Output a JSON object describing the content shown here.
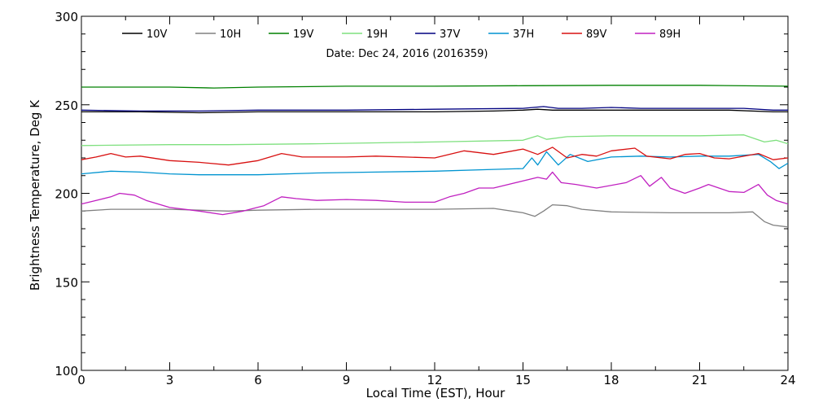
{
  "chart_data": {
    "type": "line",
    "title": "Date: Dec 24, 2016 (2016359)",
    "xlabel": "Local Time (EST), Hour",
    "ylabel": "Brightness Temperature, Deg K",
    "xlim": [
      0,
      24
    ],
    "ylim": [
      100,
      300
    ],
    "xticks": [
      0,
      3,
      6,
      9,
      12,
      15,
      18,
      21,
      24
    ],
    "yticks": [
      100,
      150,
      200,
      250,
      300
    ],
    "grid": false,
    "legend_placement": "top",
    "series": [
      {
        "name": "10V",
        "color": "#000000",
        "x": [
          0,
          2,
          4,
          6,
          8,
          10,
          12,
          14,
          15,
          15.5,
          16,
          17,
          18,
          20,
          22,
          23.5,
          24
        ],
        "y": [
          246,
          246,
          245.5,
          246,
          246,
          246,
          246,
          246.5,
          247,
          247.5,
          247,
          247,
          247,
          247,
          247,
          246,
          246
        ]
      },
      {
        "name": "10H",
        "color": "#808080",
        "x": [
          0,
          1,
          2,
          3,
          4,
          5,
          6,
          8,
          10,
          12,
          14,
          15,
          15.4,
          15.7,
          16,
          16.5,
          17,
          18,
          20,
          22,
          22.8,
          23.2,
          23.5,
          24
        ],
        "y": [
          190,
          191,
          191,
          191,
          190.5,
          190,
          190.5,
          191,
          191,
          191,
          191.5,
          189,
          187,
          190,
          193.5,
          193,
          191,
          189.5,
          189,
          189,
          189.5,
          184,
          182,
          181
        ]
      },
      {
        "name": "19V",
        "color": "#008000",
        "x": [
          0,
          3,
          4.5,
          6,
          9,
          12,
          15,
          18,
          21,
          24
        ],
        "y": [
          260,
          260,
          259.5,
          260,
          260.5,
          260.5,
          260.8,
          261,
          261,
          260.5
        ]
      },
      {
        "name": "19H",
        "color": "#7fe07f",
        "x": [
          0,
          3,
          5,
          8,
          12,
          15,
          15.5,
          15.8,
          16.5,
          18,
          21,
          22.5,
          23.2,
          23.6,
          24
        ],
        "y": [
          227,
          227.5,
          227.5,
          228,
          229,
          230,
          232.5,
          230.5,
          232,
          232.5,
          232.5,
          233,
          229,
          230,
          228
        ]
      },
      {
        "name": "37V",
        "color": "#000080",
        "x": [
          0,
          2,
          4,
          6,
          9,
          12,
          15,
          15.7,
          16.2,
          17,
          18,
          19,
          21,
          22.5,
          23.5,
          24
        ],
        "y": [
          247,
          246.5,
          246.5,
          247,
          247,
          247.5,
          248,
          249,
          248,
          248,
          248.5,
          248,
          248,
          248,
          247,
          247
        ]
      },
      {
        "name": "37H",
        "color": "#0094d0",
        "x": [
          0,
          1,
          2,
          3,
          4,
          6,
          8,
          10,
          12,
          14,
          15,
          15.3,
          15.5,
          15.8,
          16.2,
          16.6,
          17.2,
          18,
          19,
          20,
          21,
          22,
          23,
          23.4,
          23.7,
          24
        ],
        "y": [
          211,
          212.5,
          212,
          211,
          210.5,
          210.5,
          211.5,
          212,
          212.5,
          213.5,
          214,
          220,
          216,
          223.5,
          216,
          222,
          218,
          220.5,
          221,
          220.5,
          221,
          221,
          222,
          218,
          214,
          217
        ]
      },
      {
        "name": "89V",
        "color": "#d81010",
        "x": [
          0,
          0.5,
          1,
          1.5,
          2,
          3,
          4,
          5,
          6,
          6.8,
          7.5,
          9,
          10,
          11,
          12,
          13,
          14,
          15,
          15.5,
          16,
          16.5,
          17,
          17.5,
          18,
          18.8,
          19.2,
          20,
          20.5,
          21,
          21.5,
          22,
          23,
          23.5,
          24
        ],
        "y": [
          219,
          220.5,
          222.5,
          220.5,
          221,
          218.5,
          217.5,
          216,
          218.5,
          222.5,
          220.5,
          220.5,
          221,
          220.5,
          220,
          224,
          222,
          225,
          222,
          226,
          220,
          222,
          221,
          224,
          225.5,
          221,
          219.5,
          222,
          222.5,
          220,
          219.5,
          222.5,
          219,
          220
        ]
      },
      {
        "name": "89H",
        "color": "#c020c0",
        "x": [
          0,
          0.5,
          1,
          1.3,
          1.8,
          2.2,
          3,
          4,
          4.8,
          5.5,
          6.2,
          6.8,
          7.3,
          8,
          9,
          10,
          11,
          12,
          12.5,
          13,
          13.5,
          14,
          14.5,
          15,
          15.5,
          15.8,
          16,
          16.3,
          16.8,
          17.5,
          18.5,
          19,
          19.3,
          19.7,
          20,
          20.5,
          21,
          21.3,
          22,
          22.5,
          23,
          23.3,
          23.6,
          24
        ],
        "y": [
          194,
          196,
          198,
          200,
          199,
          196,
          192,
          190,
          188,
          190,
          193,
          198,
          197,
          196,
          196.5,
          196,
          195,
          195,
          198,
          200,
          203,
          203,
          205,
          207,
          209,
          208,
          212,
          206,
          205,
          203,
          206,
          210,
          204,
          209,
          203,
          200,
          203,
          205,
          201,
          200.5,
          205,
          199,
          196,
          194
        ]
      }
    ]
  }
}
